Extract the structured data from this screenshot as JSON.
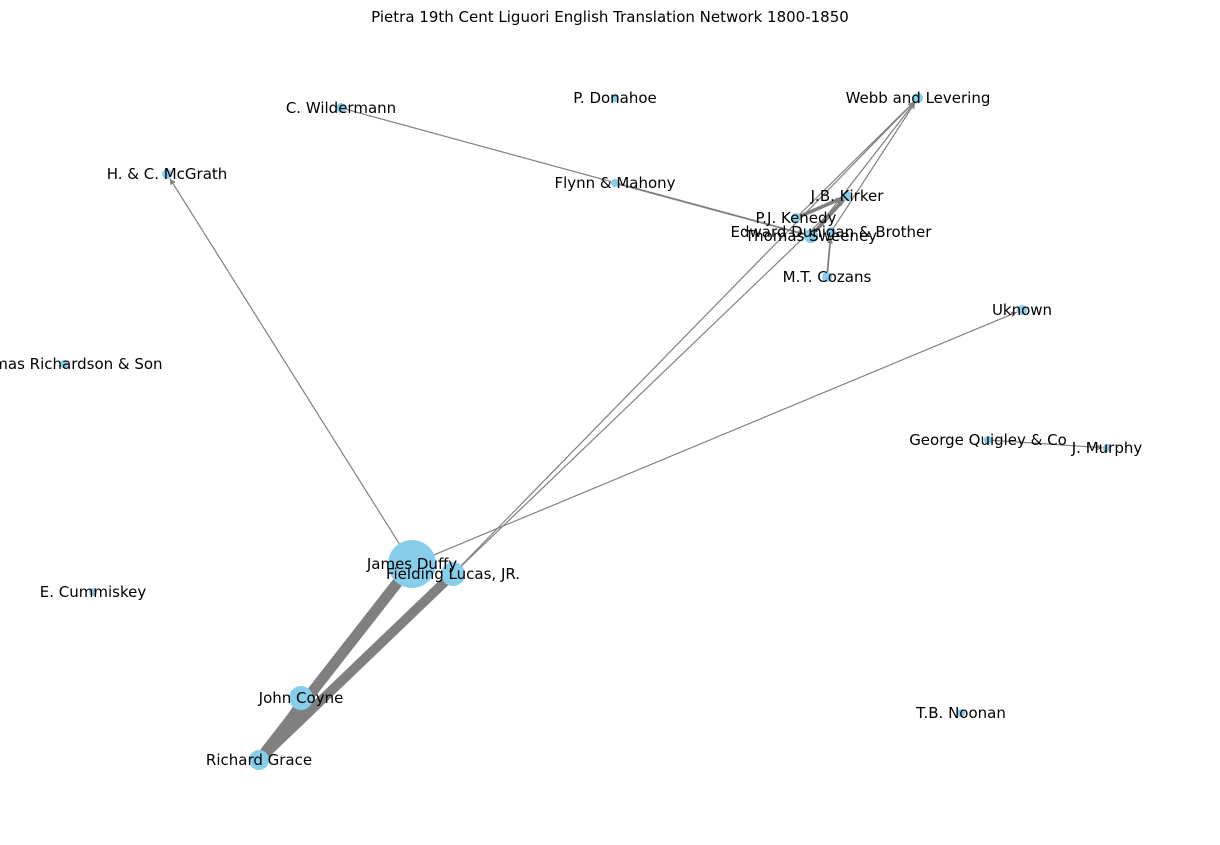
{
  "title": "Pietra 19th Cent Liguori English Translation Network 1800-1850",
  "colors": {
    "node": "#87ceeb",
    "edge": "#808080",
    "text": "#000000"
  },
  "nodes": [
    {
      "id": "james_duffy",
      "label": "James Duffy"
    },
    {
      "id": "fielding_lucas",
      "label": "Fielding Lucas, JR."
    },
    {
      "id": "john_coyne",
      "label": "John Coyne"
    },
    {
      "id": "richard_grace",
      "label": "Richard Grace"
    },
    {
      "id": "hc_mcgrath",
      "label": "H. & C. McGrath"
    },
    {
      "id": "c_wildermann",
      "label": "C. Wildermann"
    },
    {
      "id": "p_donahoe",
      "label": "P. Donahoe"
    },
    {
      "id": "webb_levering",
      "label": "Webb and Levering"
    },
    {
      "id": "flynn_mahony",
      "label": "Flynn & Mahony"
    },
    {
      "id": "jb_kirker",
      "label": "J.B. Kirker"
    },
    {
      "id": "pj_kenedy",
      "label": "P.J. Kenedy"
    },
    {
      "id": "edward_dunigan",
      "label": "Edward Dunigan & Brother"
    },
    {
      "id": "thomas_sweeney",
      "label": "Thomas Sweeney"
    },
    {
      "id": "mt_cozans",
      "label": "M.T. Cozans"
    },
    {
      "id": "uknown",
      "label": "Uknown"
    },
    {
      "id": "richardson",
      "label": "Thomas Richardson & Son"
    },
    {
      "id": "george_quigley",
      "label": "George Quigley & Co"
    },
    {
      "id": "j_murphy",
      "label": "J. Murphy"
    },
    {
      "id": "e_cummiskey",
      "label": "E. Cummiskey"
    },
    {
      "id": "tb_noonan",
      "label": "T.B. Noonan"
    }
  ],
  "edges": [
    {
      "source": "james_duffy",
      "target": "richard_grace",
      "weight": 9
    },
    {
      "source": "fielding_lucas",
      "target": "richard_grace",
      "weight": 8
    },
    {
      "source": "john_coyne",
      "target": "richard_grace",
      "weight": 3
    },
    {
      "source": "james_duffy",
      "target": "hc_mcgrath",
      "weight": 1
    },
    {
      "source": "james_duffy",
      "target": "uknown",
      "weight": 1
    },
    {
      "source": "fielding_lucas",
      "target": "webb_levering",
      "weight": 1
    },
    {
      "source": "fielding_lucas",
      "target": "jb_kirker",
      "weight": 1
    },
    {
      "source": "c_wildermann",
      "target": "thomas_sweeney",
      "weight": 1
    },
    {
      "source": "flynn_mahony",
      "target": "thomas_sweeney",
      "weight": 1.5
    },
    {
      "source": "pj_kenedy",
      "target": "webb_levering",
      "weight": 1
    },
    {
      "source": "thomas_sweeney",
      "target": "webb_levering",
      "weight": 1
    },
    {
      "source": "edward_dunigan",
      "target": "webb_levering",
      "weight": 1
    },
    {
      "source": "pj_kenedy",
      "target": "jb_kirker",
      "weight": 3
    },
    {
      "source": "thomas_sweeney",
      "target": "jb_kirker",
      "weight": 3
    },
    {
      "source": "mt_cozans",
      "target": "edward_dunigan",
      "weight": 1.5
    },
    {
      "source": "george_quigley",
      "target": "j_murphy",
      "weight": 1
    }
  ]
}
